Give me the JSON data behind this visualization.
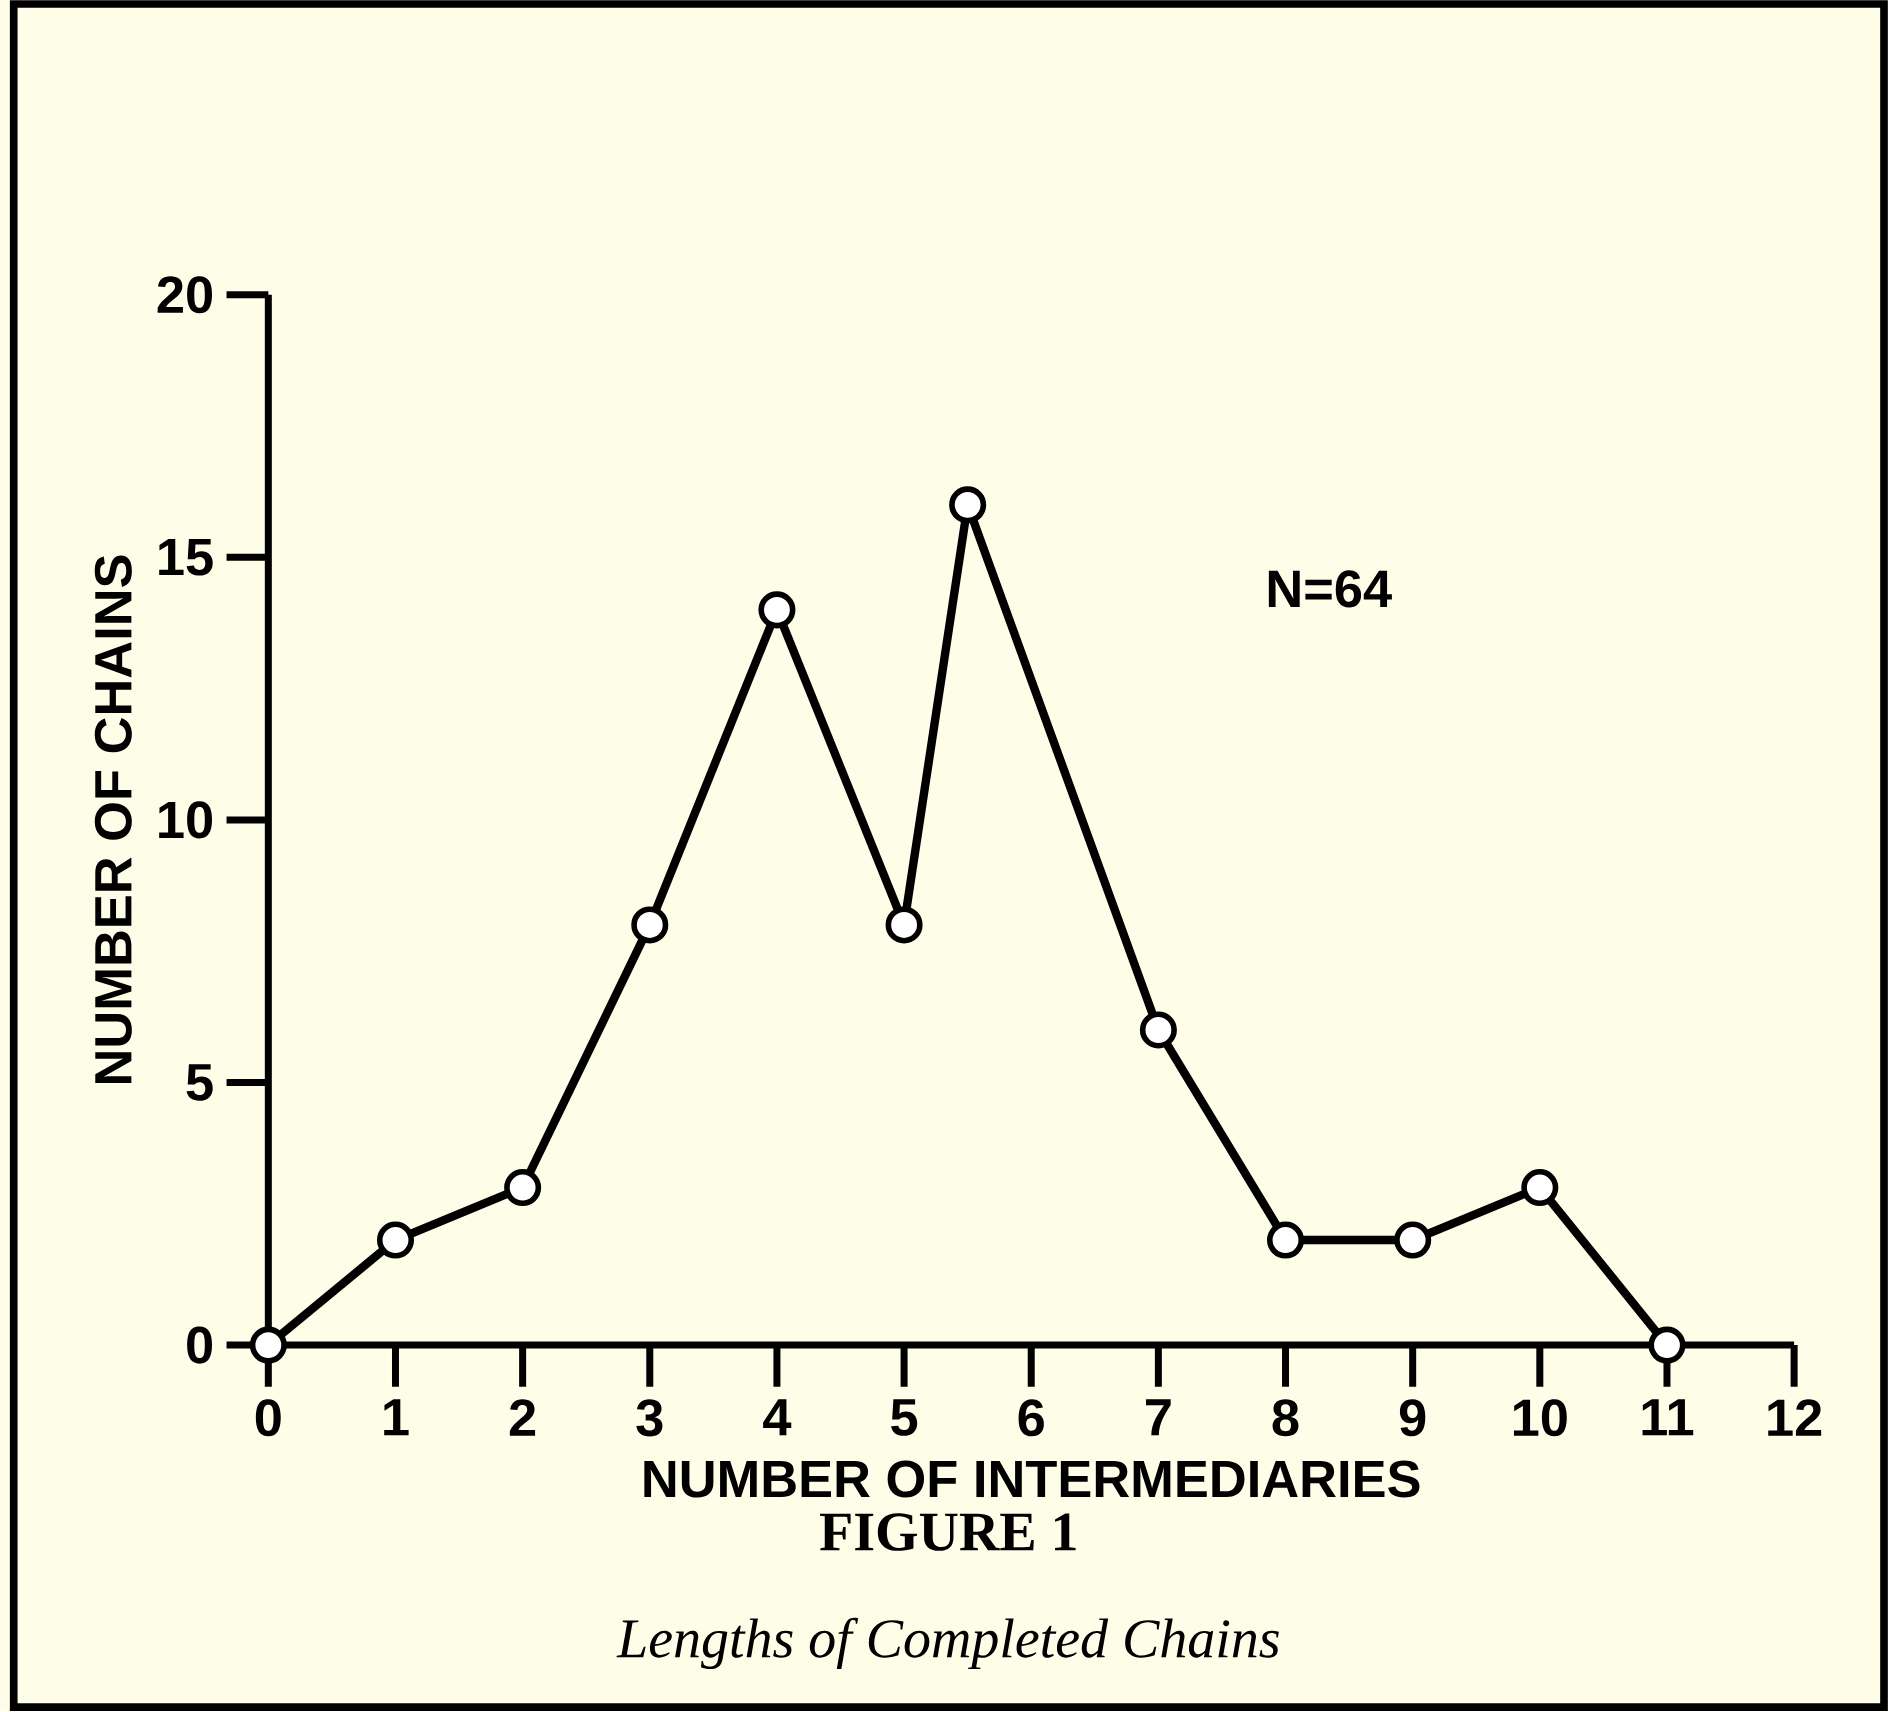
{
  "chart_data": {
    "type": "line",
    "title": "FIGURE 1",
    "subtitle": "Lengths of Completed Chains",
    "xlabel": "NUMBER OF INTERMEDIARIES",
    "ylabel": "NUMBER OF CHAINS",
    "x": [
      0,
      1,
      2,
      3,
      4,
      5,
      5.5,
      7,
      8,
      9,
      10,
      11
    ],
    "series": [
      {
        "color": "#000000",
        "values": [
          0,
          2,
          3,
          8,
          14,
          8,
          16,
          6,
          2,
          2,
          3,
          0
        ]
      }
    ],
    "xlim": [
      0,
      12
    ],
    "xticks": [
      0,
      1,
      2,
      3,
      4,
      5,
      6,
      7,
      8,
      9,
      10,
      11,
      12
    ],
    "ylim": [
      0,
      20
    ],
    "yticks": [
      0,
      5,
      10,
      15,
      20
    ],
    "annotations": [
      "N=64"
    ],
    "marker": "circle",
    "line_style": "solid",
    "grid": false
  }
}
